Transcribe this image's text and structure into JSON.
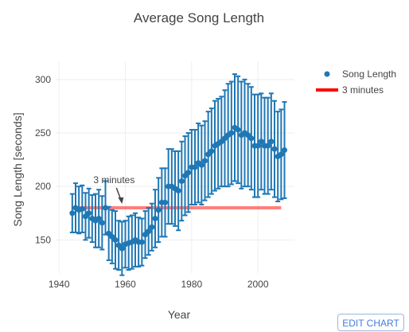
{
  "chart_data": {
    "type": "scatter",
    "title": "Average Song Length",
    "xlabel": "Year",
    "ylabel": "Song Length [seconds]",
    "xlim": [
      1939,
      2011
    ],
    "ylim": [
      119,
      317
    ],
    "xticks": [
      1940,
      1960,
      1980,
      2000
    ],
    "yticks": [
      150,
      200,
      250,
      300
    ],
    "grid": true,
    "legend_position": "top-right",
    "colors": {
      "series": "#1f77b4",
      "reference": "#ff0000"
    },
    "series": [
      {
        "name": "Song Length",
        "mode": "markers with error bars",
        "x": [
          1944,
          1945,
          1946,
          1947,
          1948,
          1949,
          1950,
          1951,
          1952,
          1953,
          1954,
          1955,
          1956,
          1957,
          1958,
          1959,
          1960,
          1961,
          1962,
          1963,
          1964,
          1965,
          1966,
          1967,
          1968,
          1969,
          1970,
          1971,
          1972,
          1973,
          1974,
          1975,
          1976,
          1977,
          1978,
          1979,
          1980,
          1981,
          1982,
          1983,
          1984,
          1985,
          1986,
          1987,
          1988,
          1989,
          1990,
          1991,
          1992,
          1993,
          1994,
          1995,
          1996,
          1997,
          1998,
          1999,
          2000,
          2001,
          2002,
          2003,
          2004,
          2005,
          2006,
          2007,
          2008
        ],
        "y": [
          175,
          180,
          178,
          179,
          172,
          175,
          170,
          168,
          170,
          166,
          180,
          156,
          153,
          150,
          145,
          142,
          146,
          147,
          148,
          150,
          148,
          148,
          155,
          158,
          162,
          170,
          178,
          185,
          185,
          200,
          200,
          198,
          196,
          205,
          210,
          213,
          218,
          218,
          222,
          220,
          224,
          230,
          233,
          238,
          240,
          242,
          245,
          248,
          250,
          255,
          253,
          248,
          250,
          248,
          245,
          238,
          238,
          242,
          238,
          238,
          242,
          235,
          228,
          230,
          234
        ],
        "error": [
          18,
          23,
          22,
          22,
          22,
          23,
          22,
          25,
          27,
          25,
          25,
          25,
          25,
          27,
          23,
          25,
          22,
          25,
          25,
          25,
          23,
          22,
          22,
          22,
          22,
          27,
          30,
          32,
          32,
          35,
          35,
          35,
          37,
          37,
          37,
          37,
          35,
          35,
          37,
          37,
          37,
          40,
          40,
          42,
          42,
          42,
          45,
          48,
          48,
          50,
          50,
          50,
          50,
          48,
          48,
          48,
          48,
          45,
          45,
          45,
          45,
          45,
          42,
          42,
          45
        ]
      },
      {
        "name": "3 minutes",
        "mode": "line",
        "x": [
          1944,
          2007
        ],
        "y": [
          180,
          180
        ]
      }
    ],
    "annotations": [
      {
        "text": "3 minutes",
        "x": 1959,
        "y": 180,
        "arrow": true
      }
    ]
  },
  "ui": {
    "edit_chart_label": "EDIT CHART"
  }
}
